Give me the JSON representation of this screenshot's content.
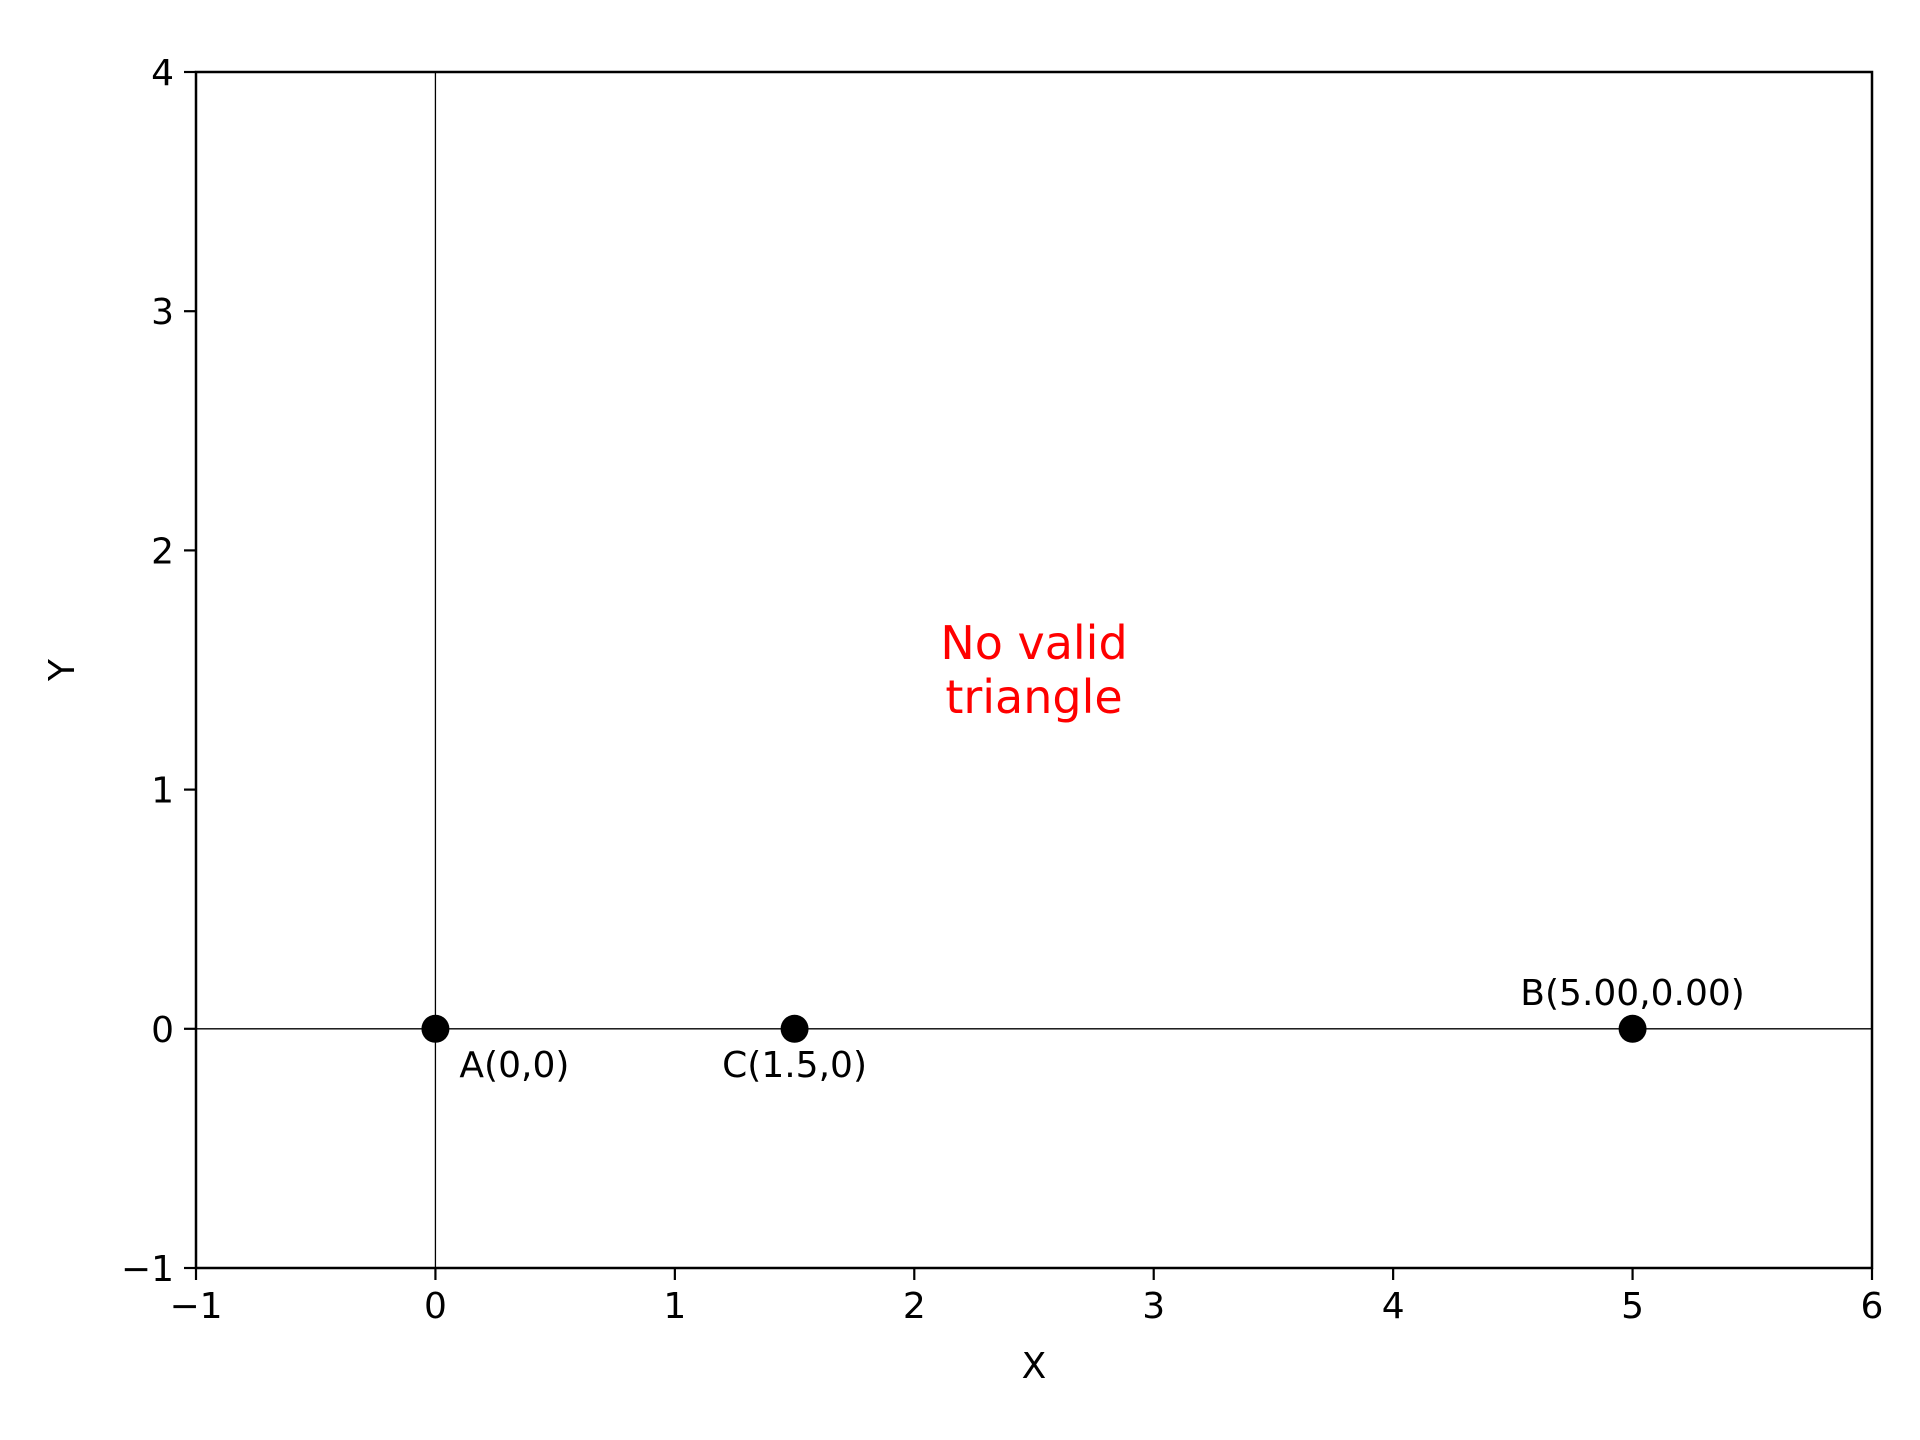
{
  "chart_data": {
    "type": "scatter",
    "title": "",
    "xlabel": "X",
    "ylabel": "Y",
    "xlim": [
      -1,
      6
    ],
    "ylim": [
      -1,
      4
    ],
    "xticks": [
      -1,
      0,
      1,
      2,
      3,
      4,
      5,
      6
    ],
    "yticks": [
      -1,
      0,
      1,
      2,
      3,
      4
    ],
    "xtick_labels": [
      "−1",
      "0",
      "1",
      "2",
      "3",
      "4",
      "5",
      "6"
    ],
    "ytick_labels": [
      "−1",
      "0",
      "1",
      "2",
      "3",
      "4"
    ],
    "grid": false,
    "reference_lines": {
      "x": 0,
      "y": 0
    },
    "points": [
      {
        "x": 0,
        "y": 0,
        "label": "A(0,0)",
        "label_position": "below-right"
      },
      {
        "x": 1.5,
        "y": 0,
        "label": "C(1.5,0)",
        "label_position": "below"
      },
      {
        "x": 5,
        "y": 0,
        "label": "B(5.00,0.00)",
        "label_position": "above"
      }
    ],
    "annotation": {
      "lines": [
        "No valid",
        "triangle"
      ],
      "x": 2.5,
      "y": 1.5,
      "color": "#ff0000"
    },
    "marker_color": "#000000"
  }
}
